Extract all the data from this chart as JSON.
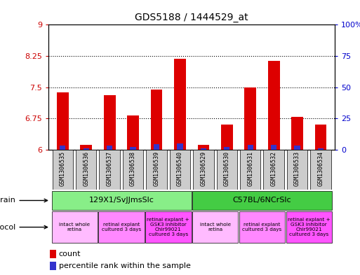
{
  "title": "GDS5188 / 1444529_at",
  "samples": [
    "GSM1306535",
    "GSM1306536",
    "GSM1306537",
    "GSM1306538",
    "GSM1306539",
    "GSM1306540",
    "GSM1306529",
    "GSM1306530",
    "GSM1306531",
    "GSM1306532",
    "GSM1306533",
    "GSM1306534"
  ],
  "count_values": [
    7.38,
    6.12,
    7.32,
    6.82,
    7.45,
    8.18,
    6.12,
    6.6,
    7.5,
    8.14,
    6.8,
    6.6
  ],
  "percentile_values": [
    3.5,
    1.5,
    3.5,
    2.5,
    4.5,
    5.0,
    1.5,
    2.5,
    4.0,
    4.0,
    3.5,
    1.5
  ],
  "ylim_left": [
    6,
    9
  ],
  "ylim_right": [
    0,
    100
  ],
  "yticks_left": [
    6,
    6.75,
    7.5,
    8.25,
    9
  ],
  "yticks_right": [
    0,
    25,
    50,
    75,
    100
  ],
  "ytick_labels_left": [
    "6",
    "6.75",
    "7.5",
    "8.25",
    "9"
  ],
  "ytick_labels_right": [
    "0",
    "25",
    "50",
    "75",
    "100%"
  ],
  "count_color": "#dd0000",
  "percentile_color": "#3333cc",
  "plot_bg_color": "#ffffff",
  "sample_bg_color": "#cccccc",
  "tick_label_color_left": "#cc0000",
  "tick_label_color_right": "#0000cc",
  "strain_groups": [
    {
      "label": "129X1/SvJJmsSlc",
      "start": 0,
      "end": 6,
      "color": "#88ee88"
    },
    {
      "label": "C57BL/6NCrSlc",
      "start": 6,
      "end": 12,
      "color": "#44cc44"
    }
  ],
  "protocol_groups": [
    {
      "label": "intact whole\nretina",
      "start": 0,
      "end": 2,
      "color": "#ffbbff"
    },
    {
      "label": "retinal explant\ncultured 3 days",
      "start": 2,
      "end": 4,
      "color": "#ff88ff"
    },
    {
      "label": "retinal explant +\nGSK3 inhibitor\nChir99021\ncultured 3 days",
      "start": 4,
      "end": 6,
      "color": "#ff55ff"
    },
    {
      "label": "intact whole\nretina",
      "start": 6,
      "end": 8,
      "color": "#ffbbff"
    },
    {
      "label": "retinal explant\ncultured 3 days",
      "start": 8,
      "end": 10,
      "color": "#ff88ff"
    },
    {
      "label": "retinal explant +\nGSK3 inhibitor\nChir99021\ncultured 3 days",
      "start": 10,
      "end": 12,
      "color": "#ff55ff"
    }
  ]
}
